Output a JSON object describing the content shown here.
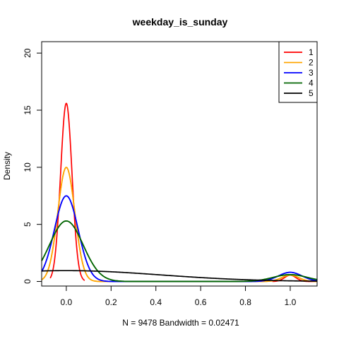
{
  "chart_data": {
    "type": "line",
    "title": "weekday_is_sunday",
    "xlabel": "N = 9478   Bandwidth = 0.02471",
    "ylabel": "Density",
    "xlim": [
      -0.11,
      1.12
    ],
    "ylim": [
      -0.4,
      21
    ],
    "x_ticks": [
      0.0,
      0.2,
      0.4,
      0.6,
      0.8,
      1.0
    ],
    "x_tick_labels": [
      "0.0",
      "0.2",
      "0.4",
      "0.6",
      "0.8",
      "1.0"
    ],
    "y_ticks": [
      0,
      5,
      10,
      15,
      20
    ],
    "y_tick_labels": [
      "0",
      "5",
      "10",
      "15",
      "20"
    ],
    "grid": false,
    "legend": {
      "position": "top-right"
    },
    "series": [
      {
        "name": "1",
        "color": "#FF0000",
        "components": [
          {
            "mu": 0.0,
            "sigma": 0.0255,
            "peak": 15.6,
            "x_from": -0.072,
            "x_to": 0.082
          },
          {
            "mu": 1.0,
            "sigma": 0.0255,
            "peak": 0.55,
            "x_from": 0.92,
            "x_to": 1.12
          }
        ]
      },
      {
        "name": "2",
        "color": "#FFA500",
        "components": [
          {
            "mu": 0.0,
            "sigma": 0.038,
            "peak": 10.0,
            "x_from": -0.11,
            "x_to": 1.12
          },
          {
            "mu": 1.0,
            "sigma": 0.038,
            "peak": 0.55,
            "x_from": -0.11,
            "x_to": 1.12
          }
        ]
      },
      {
        "name": "3",
        "color": "#0000FF",
        "components": [
          {
            "mu": 0.0,
            "sigma": 0.053,
            "peak": 7.5,
            "x_from": -0.11,
            "x_to": 1.12
          },
          {
            "mu": 1.0,
            "sigma": 0.053,
            "peak": 0.8,
            "x_from": -0.11,
            "x_to": 1.12
          }
        ]
      },
      {
        "name": "4",
        "color": "#006400",
        "components": [
          {
            "mu": 0.0,
            "sigma": 0.075,
            "peak": 5.3,
            "x_from": -0.11,
            "x_to": 1.12
          },
          {
            "mu": 1.0,
            "sigma": 0.075,
            "peak": 0.6,
            "x_from": -0.11,
            "x_to": 1.12
          }
        ]
      },
      {
        "name": "5",
        "color": "#000000",
        "components": [
          {
            "mu": 0.0,
            "sigma": 0.42,
            "peak": 0.95,
            "x_from": -0.11,
            "x_to": 1.12
          }
        ]
      }
    ]
  }
}
